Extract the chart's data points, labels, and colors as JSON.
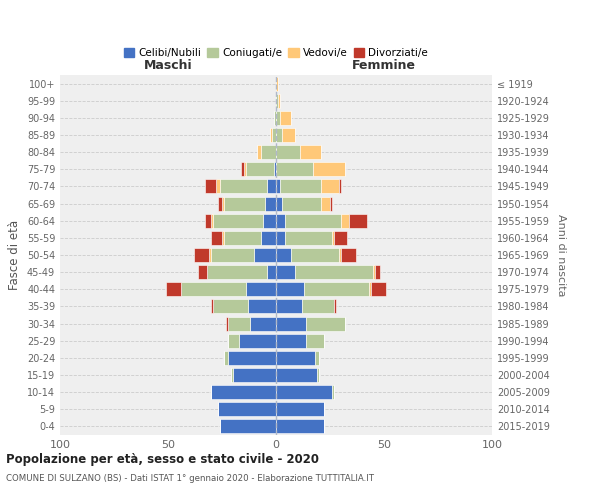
{
  "age_groups": [
    "0-4",
    "5-9",
    "10-14",
    "15-19",
    "20-24",
    "25-29",
    "30-34",
    "35-39",
    "40-44",
    "45-49",
    "50-54",
    "55-59",
    "60-64",
    "65-69",
    "70-74",
    "75-79",
    "80-84",
    "85-89",
    "90-94",
    "95-99",
    "100+"
  ],
  "birth_years": [
    "2015-2019",
    "2010-2014",
    "2005-2009",
    "2000-2004",
    "1995-1999",
    "1990-1994",
    "1985-1989",
    "1980-1984",
    "1975-1979",
    "1970-1974",
    "1965-1969",
    "1960-1964",
    "1955-1959",
    "1950-1954",
    "1945-1949",
    "1940-1944",
    "1935-1939",
    "1930-1934",
    "1925-1929",
    "1920-1924",
    "≤ 1919"
  ],
  "colors": {
    "celibi": "#4472C4",
    "coniugati": "#b5c99a",
    "vedovi": "#ffc878",
    "divorziati": "#c0392b"
  },
  "maschi": {
    "celibi": [
      26,
      27,
      30,
      20,
      22,
      17,
      12,
      13,
      14,
      4,
      10,
      7,
      6,
      5,
      4,
      1,
      0,
      0,
      0,
      0,
      0
    ],
    "coniugati": [
      0,
      0,
      0,
      1,
      2,
      5,
      10,
      16,
      30,
      28,
      20,
      17,
      23,
      19,
      22,
      13,
      7,
      2,
      1,
      0,
      0
    ],
    "vedovi": [
      0,
      0,
      0,
      0,
      0,
      0,
      0,
      0,
      0,
      0,
      1,
      1,
      1,
      1,
      2,
      1,
      2,
      1,
      0,
      0,
      0
    ],
    "divorziati": [
      0,
      0,
      0,
      0,
      0,
      0,
      1,
      1,
      7,
      4,
      7,
      5,
      3,
      2,
      5,
      1,
      0,
      0,
      0,
      0,
      0
    ]
  },
  "femmine": {
    "celibi": [
      22,
      22,
      26,
      19,
      18,
      14,
      14,
      12,
      13,
      9,
      7,
      4,
      4,
      3,
      2,
      0,
      0,
      0,
      0,
      0,
      0
    ],
    "coniugati": [
      0,
      0,
      1,
      1,
      2,
      8,
      18,
      15,
      30,
      36,
      22,
      22,
      26,
      18,
      19,
      17,
      11,
      3,
      2,
      1,
      0
    ],
    "vedovi": [
      0,
      0,
      0,
      0,
      0,
      0,
      0,
      0,
      1,
      1,
      1,
      1,
      4,
      4,
      8,
      15,
      10,
      6,
      5,
      1,
      1
    ],
    "divorziati": [
      0,
      0,
      0,
      0,
      0,
      0,
      0,
      1,
      7,
      2,
      7,
      6,
      8,
      1,
      1,
      0,
      0,
      0,
      0,
      0,
      0
    ]
  },
  "xlim": 100,
  "title": "Popolazione per età, sesso e stato civile - 2020",
  "subtitle": "COMUNE DI SULZANO (BS) - Dati ISTAT 1° gennaio 2020 - Elaborazione TUTTITALIA.IT",
  "ylabel_left": "Fasce di età",
  "ylabel_right": "Anni di nascita",
  "xlabel_maschi": "Maschi",
  "xlabel_femmine": "Femmine",
  "legend_labels": [
    "Celibi/Nubili",
    "Coniugati/e",
    "Vedovi/e",
    "Divorziati/e"
  ],
  "background_color": "#efefef"
}
